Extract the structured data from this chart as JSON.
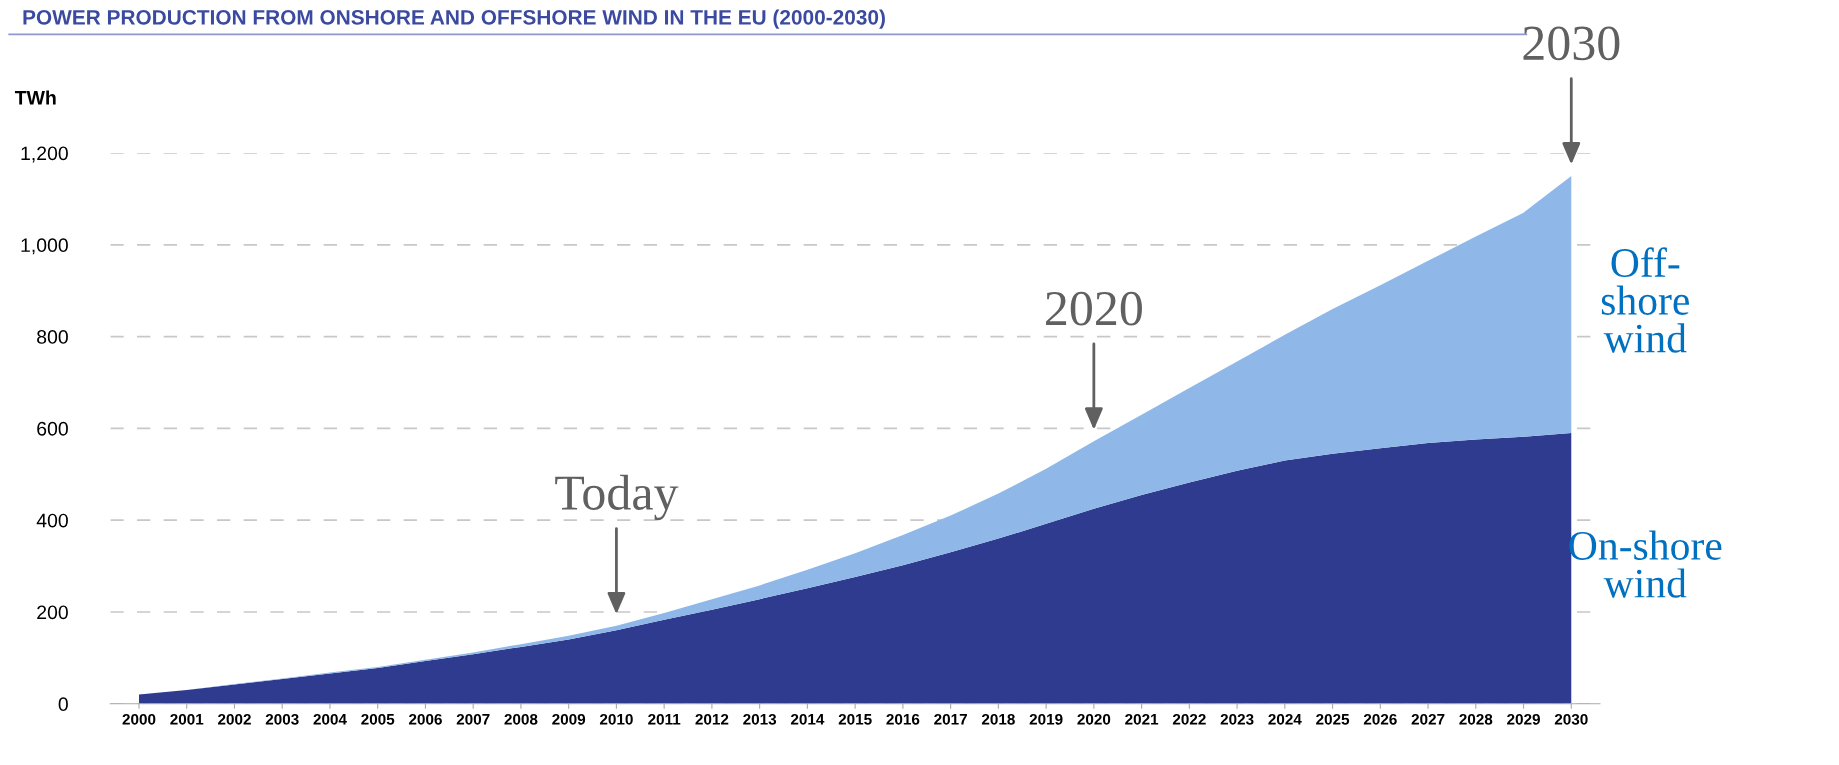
{
  "chart_data": {
    "type": "area",
    "stacked": true,
    "title": "POWER PRODUCTION FROM ONSHORE AND OFFSHORE WIND IN THE EU (2000-2030)",
    "ylabel": "TWh",
    "categories": [
      "2000",
      "2001",
      "2002",
      "2003",
      "2004",
      "2005",
      "2006",
      "2007",
      "2008",
      "2009",
      "2010",
      "2011",
      "2012",
      "2013",
      "2014",
      "2015",
      "2016",
      "2017",
      "2018",
      "2019",
      "2020",
      "2021",
      "2022",
      "2023",
      "2024",
      "2025",
      "2026",
      "2027",
      "2028",
      "2029",
      "2030"
    ],
    "series": [
      {
        "name": "On-shore\nwind",
        "color": "#2e3b8f",
        "values": [
          20,
          30,
          42,
          54,
          66,
          78,
          93,
          108,
          124,
          140,
          160,
          183,
          205,
          228,
          252,
          276,
          302,
          330,
          360,
          392,
          425,
          455,
          482,
          508,
          530,
          545,
          557,
          568,
          576,
          582,
          590
        ]
      },
      {
        "name": "Off-\nshore\nwind",
        "color": "#8fb8e8",
        "values": [
          0,
          0,
          1,
          1,
          2,
          2,
          3,
          4,
          6,
          8,
          10,
          15,
          23,
          30,
          40,
          52,
          66,
          80,
          98,
          120,
          147,
          175,
          206,
          238,
          274,
          315,
          355,
          397,
          442,
          488,
          560
        ]
      }
    ],
    "ylim": [
      0,
      1200
    ],
    "yticks": [
      0,
      200,
      400,
      600,
      800,
      {
        "value": 1000,
        "label": "1,000"
      },
      {
        "value": 1200,
        "label": "1,200"
      }
    ],
    "grid": "y",
    "annotations": [
      {
        "text": "Today",
        "x": "2010",
        "y": 170
      },
      {
        "text": "2020",
        "x": "2020",
        "y": 572
      },
      {
        "text": "2030",
        "x": "2030",
        "y": 1150
      }
    ]
  }
}
